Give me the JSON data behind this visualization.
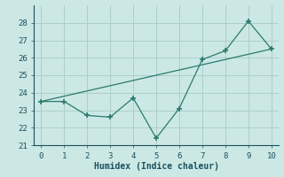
{
  "line1_x": [
    0,
    1,
    2,
    3,
    4,
    5,
    6,
    7,
    8,
    9,
    10
  ],
  "line1_y": [
    23.5,
    23.5,
    22.7,
    22.6,
    23.7,
    21.4,
    23.1,
    25.9,
    26.4,
    28.1,
    26.5
  ],
  "line2_x": [
    0,
    10
  ],
  "line2_y": [
    23.5,
    26.5
  ],
  "line_color": "#2a7a6e",
  "bg_color": "#cce8e4",
  "grid_color": "#aacfcb",
  "xlabel": "Humidex (Indice chaleur)",
  "xlim": [
    -0.3,
    10.3
  ],
  "ylim": [
    21,
    29
  ],
  "yticks": [
    21,
    22,
    23,
    24,
    25,
    26,
    27,
    28
  ],
  "xticks": [
    0,
    1,
    2,
    3,
    4,
    5,
    6,
    7,
    8,
    9,
    10
  ],
  "font_color": "#1a5060"
}
